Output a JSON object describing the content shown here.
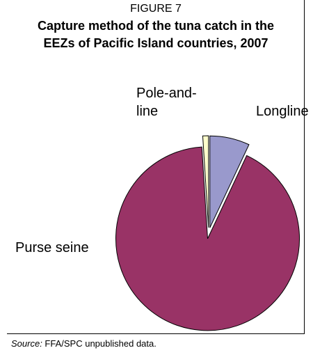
{
  "figure": {
    "label": "FIGURE 7",
    "title_line1": "Capture method of the tuna catch in the",
    "title_line2": "EEZs of Pacific Island countries, 2007"
  },
  "chart_data": {
    "type": "pie",
    "title": "Capture method of the tuna catch in the EEZs of Pacific Island countries, 2007",
    "slices": [
      {
        "label": "Longline",
        "label_lines": [
          "Longline"
        ],
        "value": 7.0,
        "color": "#9999cc",
        "exploded": true
      },
      {
        "label": "Purse seine",
        "label_lines": [
          "Purse seine"
        ],
        "value": 92.0,
        "color": "#993366",
        "exploded": true
      },
      {
        "label": "Pole-and-line",
        "label_lines": [
          "Pole-and-",
          "line"
        ],
        "value": 1.0,
        "color": "#ffffcc",
        "exploded": true
      }
    ],
    "start_angle_deg": 0,
    "direction": "clockwise"
  },
  "source": {
    "prefix": "Source:",
    "text": " FFA/SPC unpublished data."
  }
}
